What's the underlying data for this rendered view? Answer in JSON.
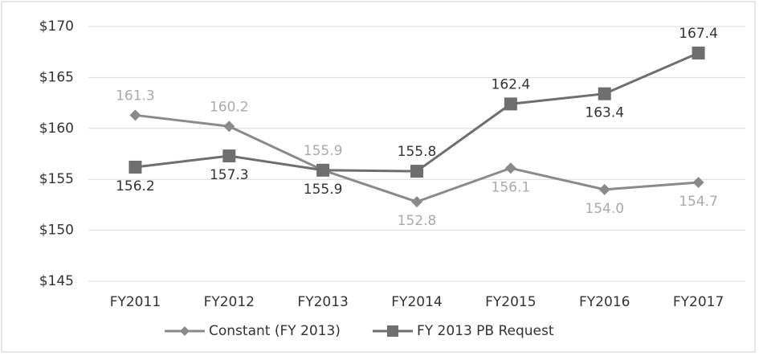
{
  "chart_data": {
    "type": "line",
    "categories": [
      "FY2011",
      "FY2012",
      "FY2013",
      "FY2014",
      "FY2015",
      "FY2016",
      "FY2017"
    ],
    "series": [
      {
        "name": "Constant (FY 2013)",
        "color": "#8a8a8a",
        "marker": "diamond",
        "values": [
          161.3,
          160.2,
          155.9,
          152.8,
          156.1,
          154.0,
          154.7
        ],
        "value_labels": [
          "161.3",
          "160.2",
          "155.9",
          "152.8",
          "156.1",
          "154.0",
          "154.7"
        ]
      },
      {
        "name": "FY 2013 PB Request",
        "color": "#6e6e6e",
        "marker": "square",
        "values": [
          156.2,
          157.3,
          155.9,
          155.8,
          162.4,
          163.4,
          167.4
        ],
        "value_labels": [
          "156.2",
          "157.3",
          "155.9",
          "155.8",
          "162.4",
          "163.4",
          "167.4"
        ]
      }
    ],
    "ylim": [
      145,
      170
    ],
    "yticks": [
      {
        "value": 145,
        "label": "$145"
      },
      {
        "value": 150,
        "label": "$150"
      },
      {
        "value": 155,
        "label": "$155"
      },
      {
        "value": 160,
        "label": "$160"
      },
      {
        "value": 165,
        "label": "$165"
      },
      {
        "value": 170,
        "label": "$170"
      }
    ],
    "grid": true,
    "legend": "bottom"
  }
}
